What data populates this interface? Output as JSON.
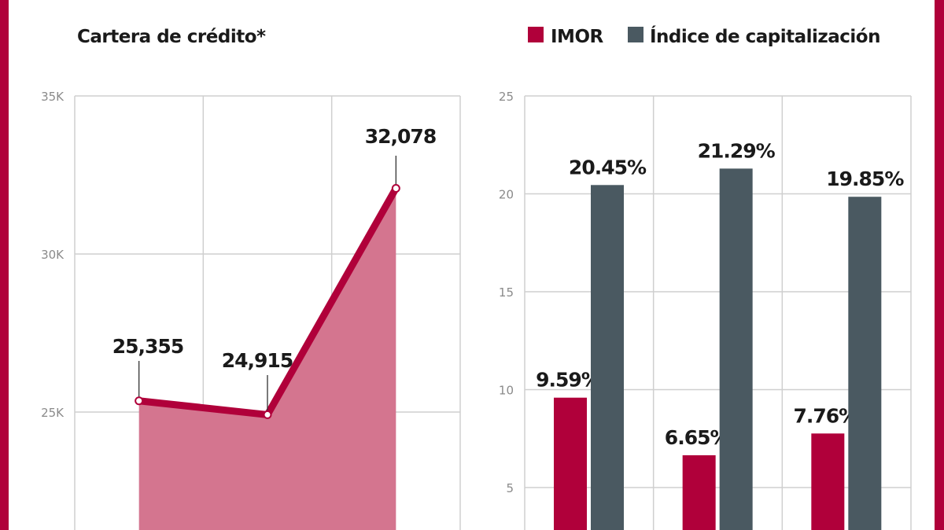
{
  "colors": {
    "border": "#b0003a",
    "line": "#b0003a",
    "area": "#d4758f",
    "imor": "#b0003a",
    "capitalizacion": "#4a5961",
    "grid": "#cfcfcf"
  },
  "chart_data": [
    {
      "type": "area",
      "title": "Cartera de crédito*",
      "x": [
        "1",
        "2",
        "3"
      ],
      "values": [
        25355,
        24915,
        32078
      ],
      "data_labels": [
        "25,355",
        "24,915",
        "32,078"
      ],
      "y_ticks": [
        "25K",
        "30K",
        "35K"
      ],
      "y_tick_values": [
        25000,
        30000,
        35000
      ],
      "ylim": [
        21300,
        35000
      ],
      "grid": true
    },
    {
      "type": "bar",
      "categories": [
        "1",
        "2",
        "3"
      ],
      "series": [
        {
          "name": "IMOR",
          "values": [
            9.59,
            6.65,
            7.76
          ],
          "labels": [
            "9.59%",
            "6.65%",
            "7.76%"
          ]
        },
        {
          "name": "Índice de capitalización",
          "values": [
            20.45,
            21.29,
            19.85
          ],
          "labels": [
            "20.45%",
            "21.29%",
            "19.85%"
          ]
        }
      ],
      "y_ticks": [
        "5",
        "10",
        "15",
        "20",
        "25"
      ],
      "y_tick_values": [
        5,
        10,
        15,
        20,
        25
      ],
      "ylim": [
        3.8,
        25
      ],
      "legend": "top",
      "grid": true
    }
  ]
}
